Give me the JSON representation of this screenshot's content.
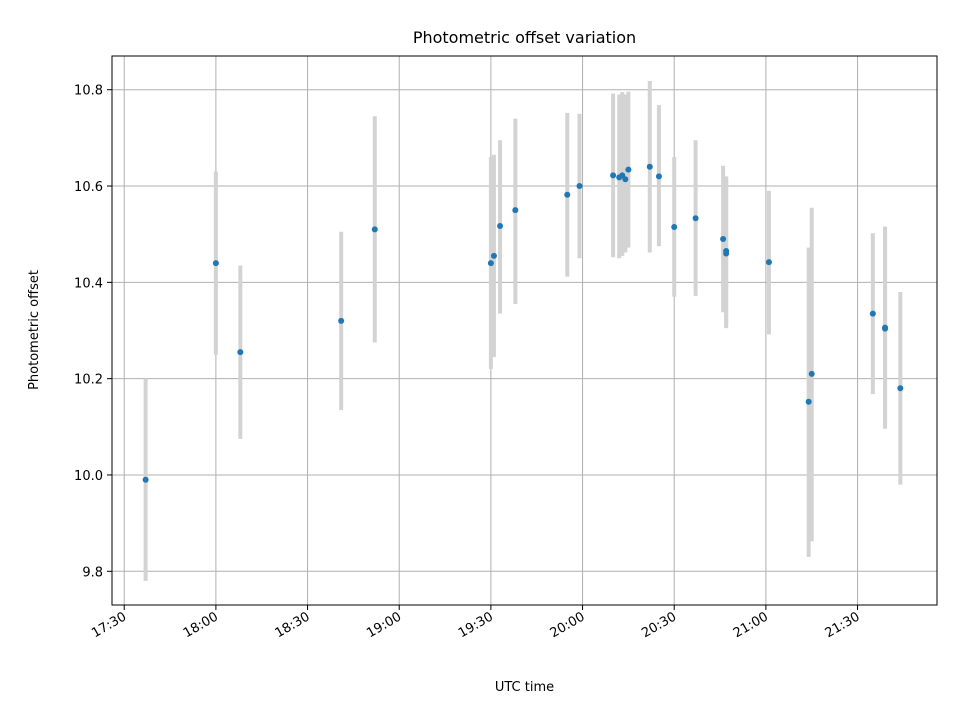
{
  "chart_data": {
    "type": "scatter",
    "title": "Photometric offset variation",
    "xlabel": "UTC time",
    "ylabel": "Photometric offset",
    "grid": true,
    "legend": "none",
    "xlim": [
      "17:26",
      "21:56"
    ],
    "ylim": [
      9.73,
      10.87
    ],
    "x_ticks": [
      "17:30",
      "18:00",
      "18:30",
      "19:00",
      "19:30",
      "20:00",
      "20:30",
      "21:00",
      "21:30"
    ],
    "y_ticks": [
      9.8,
      10.0,
      10.2,
      10.4,
      10.6,
      10.8
    ],
    "y_tick_labels": [
      "9.8",
      "10.0",
      "10.2",
      "10.4",
      "10.6",
      "10.8"
    ],
    "point_color": "#1f77b4",
    "errorbar_color": "#d3d3d3",
    "points": [
      {
        "x": "17:37",
        "y": 9.99,
        "err_low": 9.78,
        "err_high": 10.2
      },
      {
        "x": "18:00",
        "y": 10.44,
        "err_low": 10.25,
        "err_high": 10.63
      },
      {
        "x": "18:08",
        "y": 10.255,
        "err_low": 10.075,
        "err_high": 10.435
      },
      {
        "x": "18:41",
        "y": 10.32,
        "err_low": 10.135,
        "err_high": 10.505
      },
      {
        "x": "18:52",
        "y": 10.51,
        "err_low": 10.275,
        "err_high": 10.745
      },
      {
        "x": "19:30",
        "y": 10.44,
        "err_low": 10.22,
        "err_high": 10.66
      },
      {
        "x": "19:31",
        "y": 10.455,
        "err_low": 10.245,
        "err_high": 10.665
      },
      {
        "x": "19:33",
        "y": 10.517,
        "err_low": 10.335,
        "err_high": 10.695
      },
      {
        "x": "19:38",
        "y": 10.55,
        "err_low": 10.355,
        "err_high": 10.74
      },
      {
        "x": "19:55",
        "y": 10.582,
        "err_low": 10.412,
        "err_high": 10.752
      },
      {
        "x": "19:59",
        "y": 10.6,
        "err_low": 10.45,
        "err_high": 10.75
      },
      {
        "x": "20:10",
        "y": 10.622,
        "err_low": 10.452,
        "err_high": 10.792
      },
      {
        "x": "20:12",
        "y": 10.618,
        "err_low": 10.45,
        "err_high": 10.79
      },
      {
        "x": "20:13",
        "y": 10.622,
        "err_low": 10.455,
        "err_high": 10.795
      },
      {
        "x": "20:14",
        "y": 10.614,
        "err_low": 10.462,
        "err_high": 10.79
      },
      {
        "x": "20:15",
        "y": 10.634,
        "err_low": 10.472,
        "err_high": 10.796
      },
      {
        "x": "20:22",
        "y": 10.64,
        "err_low": 10.462,
        "err_high": 10.818
      },
      {
        "x": "20:25",
        "y": 10.62,
        "err_low": 10.475,
        "err_high": 10.768
      },
      {
        "x": "20:30",
        "y": 10.515,
        "err_low": 10.37,
        "err_high": 10.66
      },
      {
        "x": "20:37",
        "y": 10.533,
        "err_low": 10.372,
        "err_high": 10.695
      },
      {
        "x": "20:46",
        "y": 10.49,
        "err_low": 10.338,
        "err_high": 10.642
      },
      {
        "x": "20:47",
        "y": 10.465,
        "err_low": 10.31,
        "err_high": 10.62
      },
      {
        "x": "20:47",
        "y": 10.46,
        "err_low": 10.305,
        "err_high": 10.615
      },
      {
        "x": "21:01",
        "y": 10.442,
        "err_low": 10.292,
        "err_high": 10.59
      },
      {
        "x": "21:14",
        "y": 10.152,
        "err_low": 9.83,
        "err_high": 10.472
      },
      {
        "x": "21:15",
        "y": 10.21,
        "err_low": 9.862,
        "err_high": 10.555
      },
      {
        "x": "21:35",
        "y": 10.335,
        "err_low": 10.168,
        "err_high": 10.502
      },
      {
        "x": "21:39",
        "y": 10.306,
        "err_low": 10.096,
        "err_high": 10.516
      },
      {
        "x": "21:39",
        "y": 10.304,
        "err_low": 10.1,
        "err_high": 10.51
      },
      {
        "x": "21:44",
        "y": 10.18,
        "err_low": 9.98,
        "err_high": 10.38
      }
    ]
  }
}
